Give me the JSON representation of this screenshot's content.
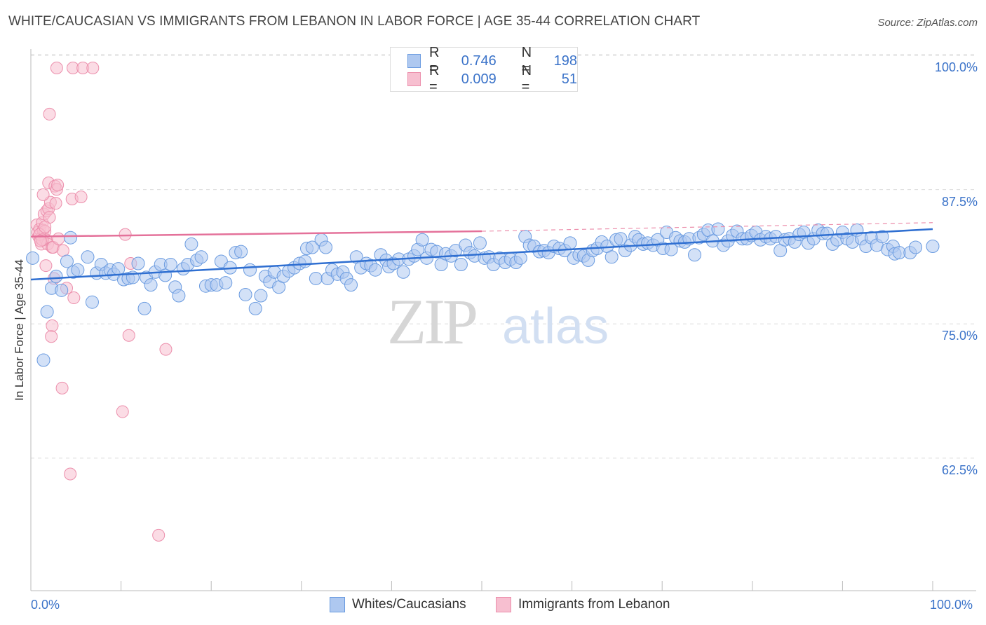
{
  "title": "WHITE/CAUCASIAN VS IMMIGRANTS FROM LEBANON IN LABOR FORCE | AGE 35-44 CORRELATION CHART",
  "source": "Source: ZipAtlas.com",
  "watermark": {
    "zip": "ZIP",
    "atlas": "atlas"
  },
  "legend": {
    "rows": [
      {
        "r_label": "R =",
        "r_value": "0.746",
        "n_label": "N =",
        "n_value": "198"
      },
      {
        "r_label": "R =",
        "r_value": "0.009",
        "n_label": "N =",
        "n_value": "51"
      }
    ]
  },
  "bottom_legend": [
    "Whites/Caucasians",
    "Immigrants from Lebanon"
  ],
  "colors": {
    "blue_fill": "#aec8f0",
    "blue_stroke": "#6a9be0",
    "blue_line": "#2f6fd1",
    "pink_fill": "#f7bfd0",
    "pink_stroke": "#ec8fac",
    "pink_line": "#e4719a",
    "axis_text": "#3b73c9",
    "grid": "#dcdcdc"
  },
  "chart_data": {
    "type": "scatter",
    "title": "WHITE/CAUCASIAN VS IMMIGRANTS FROM LEBANON IN LABOR FORCE | AGE 35-44 CORRELATION CHART",
    "xlabel": "",
    "ylabel": "In Labor Force | Age 35-44",
    "xlim": [
      0,
      100
    ],
    "ylim": [
      50,
      102
    ],
    "x_tick_labels": [
      "0.0%",
      "100.0%"
    ],
    "y_tick_labels": [
      "100.0%",
      "87.5%",
      "75.0%",
      "62.5%"
    ],
    "y_ticks": [
      100,
      87.5,
      75,
      62.5
    ],
    "grid": true,
    "legend_position": "top-center",
    "series": [
      {
        "name": "Whites/Caucasians",
        "r": 0.746,
        "n": 198,
        "trend": {
          "x": [
            0,
            100
          ],
          "y": [
            80.3,
            85.0
          ]
        },
        "points": [
          [
            1.4,
            72.8
          ],
          [
            1.8,
            77.3
          ],
          [
            2.3,
            79.5
          ],
          [
            2.8,
            80.6
          ],
          [
            3.4,
            79.3
          ],
          [
            4.0,
            82.0
          ],
          [
            4.4,
            84.2
          ],
          [
            4.7,
            81.0
          ],
          [
            5.2,
            81.2
          ],
          [
            6.3,
            82.4
          ],
          [
            6.8,
            78.2
          ],
          [
            7.3,
            80.9
          ],
          [
            7.8,
            81.7
          ],
          [
            8.3,
            80.9
          ],
          [
            8.8,
            81.2
          ],
          [
            9.2,
            80.8
          ],
          [
            9.7,
            81.3
          ],
          [
            10.3,
            80.3
          ],
          [
            10.8,
            80.4
          ],
          [
            11.3,
            80.5
          ],
          [
            11.9,
            81.8
          ],
          [
            12.6,
            77.6
          ],
          [
            12.8,
            80.5
          ],
          [
            13.3,
            79.8
          ],
          [
            13.8,
            81.0
          ],
          [
            14.4,
            81.7
          ],
          [
            14.9,
            80.7
          ],
          [
            15.5,
            81.7
          ],
          [
            16.0,
            79.6
          ],
          [
            16.4,
            78.8
          ],
          [
            16.9,
            81.3
          ],
          [
            17.4,
            81.7
          ],
          [
            17.8,
            83.6
          ],
          [
            18.4,
            82.1
          ],
          [
            18.9,
            82.4
          ],
          [
            19.4,
            79.7
          ],
          [
            20.0,
            79.8
          ],
          [
            20.6,
            79.8
          ],
          [
            21.1,
            82.0
          ],
          [
            21.6,
            80.0
          ],
          [
            22.1,
            81.4
          ],
          [
            22.7,
            82.8
          ],
          [
            23.3,
            82.9
          ],
          [
            23.8,
            78.9
          ],
          [
            24.3,
            81.2
          ],
          [
            24.9,
            77.6
          ],
          [
            25.5,
            78.8
          ],
          [
            26.0,
            80.6
          ],
          [
            26.5,
            80.1
          ],
          [
            27.0,
            81.0
          ],
          [
            27.5,
            79.6
          ],
          [
            28.0,
            80.6
          ],
          [
            28.6,
            81.1
          ],
          [
            29.2,
            81.4
          ],
          [
            29.8,
            81.8
          ],
          [
            30.4,
            82.0
          ],
          [
            30.6,
            83.2
          ],
          [
            31.2,
            83.3
          ],
          [
            31.6,
            80.4
          ],
          [
            32.2,
            84.0
          ],
          [
            32.7,
            83.3
          ],
          [
            32.9,
            80.4
          ],
          [
            33.4,
            81.2
          ],
          [
            34.0,
            80.8
          ],
          [
            34.6,
            81.0
          ],
          [
            35.0,
            80.4
          ],
          [
            35.5,
            79.8
          ],
          [
            36.1,
            82.4
          ],
          [
            36.6,
            81.4
          ],
          [
            37.2,
            81.8
          ],
          [
            37.7,
            81.6
          ],
          [
            38.2,
            81.2
          ],
          [
            38.8,
            82.6
          ],
          [
            39.4,
            82.1
          ],
          [
            39.7,
            81.5
          ],
          [
            40.2,
            81.8
          ],
          [
            40.8,
            82.2
          ],
          [
            41.3,
            81.0
          ],
          [
            41.9,
            82.2
          ],
          [
            42.5,
            82.5
          ],
          [
            42.9,
            83.1
          ],
          [
            43.4,
            84.0
          ],
          [
            43.9,
            82.3
          ],
          [
            44.4,
            83.1
          ],
          [
            45.0,
            82.9
          ],
          [
            45.5,
            81.7
          ],
          [
            46.0,
            82.7
          ],
          [
            46.6,
            82.5
          ],
          [
            47.1,
            83.0
          ],
          [
            47.7,
            81.7
          ],
          [
            48.2,
            83.5
          ],
          [
            48.7,
            82.8
          ],
          [
            49.2,
            82.5
          ],
          [
            49.8,
            83.7
          ],
          [
            50.3,
            82.3
          ],
          [
            50.8,
            82.4
          ],
          [
            51.3,
            81.7
          ],
          [
            52.0,
            82.3
          ],
          [
            52.6,
            81.9
          ],
          [
            53.2,
            82.2
          ],
          [
            53.8,
            81.9
          ],
          [
            54.3,
            82.3
          ],
          [
            54.8,
            84.3
          ],
          [
            55.3,
            83.5
          ],
          [
            55.8,
            83.4
          ],
          [
            56.4,
            82.9
          ],
          [
            56.9,
            83.0
          ],
          [
            57.4,
            82.8
          ],
          [
            58.0,
            83.4
          ],
          [
            58.6,
            83.2
          ],
          [
            59.2,
            83.0
          ],
          [
            59.8,
            83.7
          ],
          [
            60.2,
            82.3
          ],
          [
            60.8,
            82.6
          ],
          [
            61.3,
            82.5
          ],
          [
            61.8,
            82.1
          ],
          [
            62.3,
            83.0
          ],
          [
            62.8,
            83.2
          ],
          [
            63.3,
            83.8
          ],
          [
            63.9,
            83.4
          ],
          [
            64.4,
            82.4
          ],
          [
            64.9,
            84.0
          ],
          [
            65.4,
            84.1
          ],
          [
            65.9,
            83.0
          ],
          [
            66.5,
            83.5
          ],
          [
            67.0,
            84.3
          ],
          [
            67.4,
            84.0
          ],
          [
            67.9,
            83.6
          ],
          [
            68.4,
            83.7
          ],
          [
            69.0,
            83.5
          ],
          [
            69.5,
            84.0
          ],
          [
            70.1,
            83.2
          ],
          [
            70.5,
            84.7
          ],
          [
            71.0,
            83.1
          ],
          [
            71.5,
            84.2
          ],
          [
            72.0,
            83.9
          ],
          [
            72.5,
            83.8
          ],
          [
            73.0,
            84.1
          ],
          [
            73.6,
            82.6
          ],
          [
            74.1,
            84.2
          ],
          [
            74.6,
            84.5
          ],
          [
            75.1,
            84.9
          ],
          [
            75.6,
            83.9
          ],
          [
            76.2,
            85.0
          ],
          [
            76.8,
            83.5
          ],
          [
            77.3,
            83.9
          ],
          [
            77.8,
            84.4
          ],
          [
            78.3,
            84.8
          ],
          [
            78.9,
            84.1
          ],
          [
            79.4,
            84.1
          ],
          [
            79.9,
            84.4
          ],
          [
            80.4,
            84.7
          ],
          [
            80.9,
            84.0
          ],
          [
            81.5,
            84.3
          ],
          [
            82.0,
            84.1
          ],
          [
            82.6,
            84.3
          ],
          [
            83.1,
            83.0
          ],
          [
            83.6,
            84.0
          ],
          [
            84.1,
            84.1
          ],
          [
            84.7,
            83.8
          ],
          [
            85.2,
            84.5
          ],
          [
            85.7,
            84.7
          ],
          [
            86.2,
            83.7
          ],
          [
            86.8,
            84.1
          ],
          [
            87.3,
            84.9
          ],
          [
            87.8,
            84.6
          ],
          [
            88.3,
            84.6
          ],
          [
            88.9,
            83.6
          ],
          [
            89.4,
            84.0
          ],
          [
            90.0,
            84.7
          ],
          [
            90.5,
            84.1
          ],
          [
            91.1,
            83.8
          ],
          [
            91.6,
            84.9
          ],
          [
            92.1,
            84.1
          ],
          [
            92.6,
            83.4
          ],
          [
            93.2,
            84.2
          ],
          [
            93.8,
            83.5
          ],
          [
            94.4,
            84.3
          ],
          [
            95.0,
            83.1
          ],
          [
            95.6,
            83.4
          ],
          [
            95.8,
            82.7
          ],
          [
            96.3,
            82.8
          ],
          [
            97.5,
            82.8
          ],
          [
            98.1,
            83.3
          ],
          [
            100.0,
            83.4
          ],
          [
            0.2,
            82.3
          ]
        ]
      },
      {
        "name": "Immigrants from Lebanon",
        "r": 0.009,
        "n": 51,
        "trend": {
          "x": [
            0,
            50
          ],
          "y": [
            84.3,
            84.8
          ]
        },
        "trend_extension": {
          "x": [
            50,
            100
          ],
          "y": [
            84.8,
            85.6
          ]
        },
        "points": [
          [
            0.2,
            85.4
          ],
          [
            0.3,
            84.7
          ],
          [
            0.4,
            84.3
          ],
          [
            0.5,
            85.0
          ],
          [
            0.6,
            84.1
          ],
          [
            0.7,
            83.6
          ],
          [
            0.8,
            85.6
          ],
          [
            0.9,
            84.9
          ],
          [
            1.0,
            86.4
          ],
          [
            1.1,
            84.8
          ],
          [
            1.2,
            84.0
          ],
          [
            1.3,
            86.7
          ],
          [
            1.4,
            83.6
          ],
          [
            1.5,
            86.9
          ],
          [
            1.6,
            86.1
          ],
          [
            1.7,
            87.5
          ],
          [
            0.9,
            88.2
          ],
          [
            1.5,
            89.3
          ],
          [
            1.9,
            76.0
          ],
          [
            1.8,
            75.0
          ],
          [
            1.9,
            83.3
          ],
          [
            2.0,
            83.3
          ],
          [
            2.1,
            80.4
          ],
          [
            2.2,
            89.0
          ],
          [
            2.3,
            87.4
          ],
          [
            2.4,
            88.7
          ],
          [
            2.5,
            89.1
          ],
          [
            1.6,
            95.7
          ],
          [
            2.4,
            100.0
          ],
          [
            4.2,
            100.0
          ],
          [
            5.3,
            100.0
          ],
          [
            6.4,
            100.0
          ],
          [
            3.1,
            83.0
          ],
          [
            3.5,
            79.5
          ],
          [
            4.3,
            78.6
          ],
          [
            4.1,
            87.8
          ],
          [
            5.1,
            88.0
          ],
          [
            3.0,
            70.2
          ],
          [
            3.9,
            62.2
          ],
          [
            10.0,
            84.5
          ],
          [
            10.4,
            75.1
          ],
          [
            9.7,
            68.0
          ],
          [
            10.6,
            81.8
          ],
          [
            14.5,
            73.8
          ],
          [
            13.7,
            56.5
          ],
          [
            1.2,
            81.6
          ],
          [
            0.5,
            84.5
          ],
          [
            0.8,
            84.0
          ],
          [
            1.1,
            85.2
          ],
          [
            0.6,
            83.9
          ],
          [
            2.6,
            84.1
          ]
        ]
      }
    ]
  }
}
